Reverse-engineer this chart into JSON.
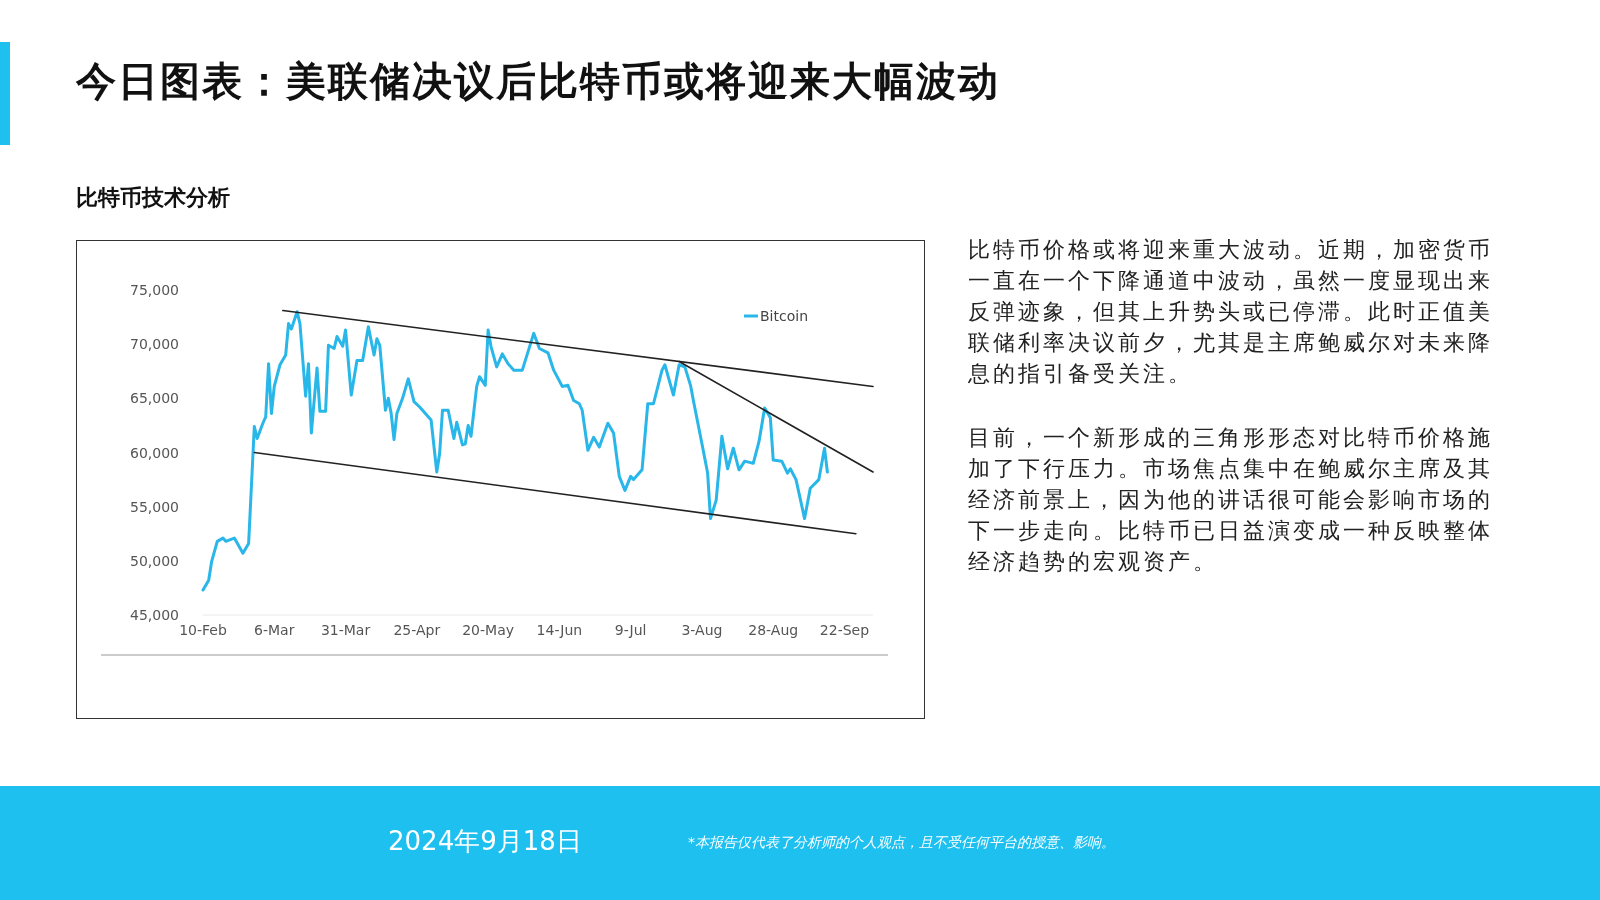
{
  "chart_data": {
    "type": "line",
    "title": "今日图表：美联储决议后比特币或将迎来大幅波动",
    "subtitle": "比特币技术分析",
    "annotations": [
      "比特币价格或将迎来重大波动。近期，加密货币一直在一个下降通道中波动，虽然一度显现出来反弹迹象，但其上升势头或已停滞。此时正值美联储利率决议前夕，尤其是主席鲍威尔对未来降息的指引备受关注。",
      "目前，一个新形成的三角形形态对比特币价格施加了下行压力。市场焦点集中在鲍威尔主席及其经济前景上，因为他的讲话很可能会影响市场的下一步走向。比特币已日益演变成一种反映整体经济趋势的宏观资产。",
      "2024年9月18日",
      "*本报告仅代表了分析师的个人观点，且不受任何平台的授意、影响。"
    ],
    "xlim": [
      "2024-02-10",
      "2024-10-02"
    ],
    "xticks": [
      {
        "value": "2024-02-10",
        "label": "10-Feb"
      },
      {
        "value": "2024-03-06",
        "label": "6-Mar"
      },
      {
        "value": "2024-03-31",
        "label": "31-Mar"
      },
      {
        "value": "2024-04-25",
        "label": "25-Apr"
      },
      {
        "value": "2024-05-20",
        "label": "20-May"
      },
      {
        "value": "2024-06-14",
        "label": "14-Jun"
      },
      {
        "value": "2024-07-09",
        "label": "9-Jul"
      },
      {
        "value": "2024-08-03",
        "label": "3-Aug"
      },
      {
        "value": "2024-08-28",
        "label": "28-Aug"
      },
      {
        "value": "2024-09-22",
        "label": "22-Sep"
      }
    ],
    "ylim": [
      45000,
      75000
    ],
    "yticks": [
      {
        "value": 45000,
        "label": "45,000"
      },
      {
        "value": 50000,
        "label": "50,000"
      },
      {
        "value": 55000,
        "label": "55,000"
      },
      {
        "value": 60000,
        "label": "60,000"
      },
      {
        "value": 65000,
        "label": "65,000"
      },
      {
        "value": 70000,
        "label": "70,000"
      },
      {
        "value": 75000,
        "label": "75,000"
      }
    ],
    "legend": "top right",
    "marker": "none",
    "line_style": "solid",
    "series": [
      {
        "name": "Bitcoin",
        "color": "#29b6e8",
        "x": [
          "2024-02-10",
          "2024-02-12",
          "2024-02-13",
          "2024-02-15",
          "2024-02-17",
          "2024-02-18",
          "2024-02-21",
          "2024-02-24",
          "2024-02-26",
          "2024-02-28",
          "2024-02-29",
          "2024-03-02",
          "2024-03-03",
          "2024-03-04",
          "2024-03-05",
          "2024-03-06",
          "2024-03-08",
          "2024-03-10",
          "2024-03-11",
          "2024-03-12",
          "2024-03-14",
          "2024-03-15",
          "2024-03-17",
          "2024-03-18",
          "2024-03-19",
          "2024-03-21",
          "2024-03-22",
          "2024-03-24",
          "2024-03-25",
          "2024-03-27",
          "2024-03-28",
          "2024-03-30",
          "2024-03-31",
          "2024-04-02",
          "2024-04-04",
          "2024-04-06",
          "2024-04-08",
          "2024-04-10",
          "2024-04-11",
          "2024-04-12",
          "2024-04-14",
          "2024-04-15",
          "2024-04-16",
          "2024-04-17",
          "2024-04-18",
          "2024-04-20",
          "2024-04-22",
          "2024-04-24",
          "2024-04-26",
          "2024-04-29",
          "2024-04-30",
          "2024-05-02",
          "2024-05-03",
          "2024-05-04",
          "2024-05-06",
          "2024-05-08",
          "2024-05-09",
          "2024-05-11",
          "2024-05-12",
          "2024-05-13",
          "2024-05-14",
          "2024-05-16",
          "2024-05-17",
          "2024-05-19",
          "2024-05-20",
          "2024-05-21",
          "2024-05-23",
          "2024-05-25",
          "2024-05-27",
          "2024-05-29",
          "2024-06-01",
          "2024-06-05",
          "2024-06-07",
          "2024-06-10",
          "2024-06-12",
          "2024-06-15",
          "2024-06-17",
          "2024-06-19",
          "2024-06-21",
          "2024-06-22",
          "2024-06-24",
          "2024-06-26",
          "2024-06-28",
          "2024-07-01",
          "2024-07-03",
          "2024-07-05",
          "2024-07-07",
          "2024-07-09",
          "2024-07-10",
          "2024-07-13",
          "2024-07-15",
          "2024-07-17",
          "2024-07-20",
          "2024-07-21",
          "2024-07-24",
          "2024-07-26",
          "2024-07-28",
          "2024-07-30",
          "2024-07-31",
          "2024-08-03",
          "2024-08-05",
          "2024-08-06",
          "2024-08-08",
          "2024-08-10",
          "2024-08-12",
          "2024-08-14",
          "2024-08-16",
          "2024-08-18",
          "2024-08-21",
          "2024-08-23",
          "2024-08-25",
          "2024-08-27",
          "2024-08-28",
          "2024-08-31",
          "2024-09-02",
          "2024-09-03",
          "2024-09-05",
          "2024-09-08",
          "2024-09-10",
          "2024-09-13",
          "2024-09-15",
          "2024-09-16"
        ],
        "values": [
          47300,
          48200,
          49900,
          51800,
          52100,
          51800,
          52100,
          50700,
          51600,
          62400,
          61300,
          62700,
          63300,
          68200,
          63600,
          66100,
          68100,
          69000,
          71900,
          71400,
          73000,
          71900,
          65200,
          68200,
          61800,
          67800,
          63800,
          63800,
          69900,
          69600,
          70700,
          69800,
          71300,
          65300,
          68500,
          68500,
          71600,
          69000,
          70500,
          69900,
          63900,
          65000,
          63600,
          61200,
          63600,
          65000,
          66800,
          64700,
          64200,
          63300,
          63000,
          58200,
          59900,
          63900,
          63900,
          61300,
          62800,
          60700,
          60800,
          62500,
          61500,
          66100,
          67000,
          66200,
          71300,
          69800,
          67900,
          69100,
          68200,
          67600,
          67600,
          71000,
          69600,
          69200,
          67600,
          66100,
          66200,
          64800,
          64500,
          63900,
          60200,
          61400,
          60500,
          62700,
          61800,
          57800,
          56500,
          57800,
          57500,
          58400,
          64500,
          64500,
          67600,
          68100,
          65300,
          68100,
          67900,
          66200,
          64800,
          60800,
          58100,
          53900,
          55600,
          61500,
          58500,
          60400,
          58400,
          59200,
          59000,
          61000,
          64100,
          63200,
          59300,
          59200,
          58100,
          58500,
          57500,
          53900,
          56700,
          57500,
          60400,
          58200
        ]
      },
      {
        "color": "#222222",
        "x": [
          "2024-03-09",
          "2024-10-02"
        ],
        "values": [
          73100,
          66100
        ]
      },
      {
        "color": "#222222",
        "x": [
          "2024-02-28",
          "2024-09-26"
        ],
        "values": [
          60000,
          52500
        ]
      },
      {
        "color": "#222222",
        "x": [
          "2024-07-26",
          "2024-10-02"
        ],
        "values": [
          68400,
          58200
        ]
      }
    ]
  }
}
